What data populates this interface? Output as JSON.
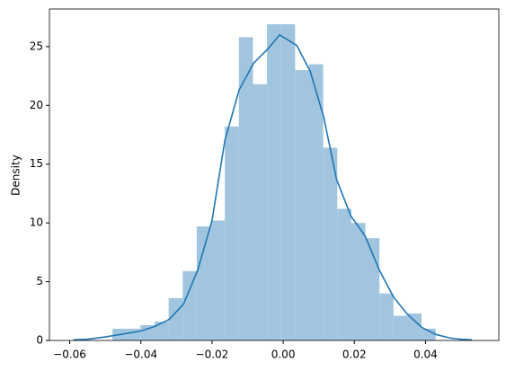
{
  "chart_data": {
    "type": "histogram",
    "ylabel": "Density",
    "bins": [
      -0.048,
      -0.04405,
      -0.0401,
      -0.03615,
      -0.0322,
      -0.02825,
      -0.0243,
      -0.02035,
      -0.0164,
      -0.01245,
      -0.0085,
      -0.00455,
      -0.0006,
      0.00335,
      0.0073,
      0.01125,
      0.0152,
      0.01915,
      0.0231,
      0.02705,
      0.031,
      0.03495,
      0.0389,
      0.04285
    ],
    "values": [
      1.0,
      1.0,
      1.3,
      1.6,
      3.6,
      5.9,
      9.7,
      10.2,
      18.2,
      25.8,
      21.8,
      26.9,
      26.9,
      23.0,
      23.5,
      16.4,
      11.2,
      10.0,
      8.7,
      4.0,
      2.1,
      2.3,
      1.0
    ],
    "color": "#a1c5df",
    "kde": {
      "color": "#1f77b4",
      "x": [
        -0.059,
        -0.055,
        -0.05,
        -0.045,
        -0.04,
        -0.036,
        -0.032,
        -0.028,
        -0.024,
        -0.02,
        -0.0164,
        -0.0124,
        -0.0083,
        -0.0043,
        -0.001,
        0.0038,
        0.0076,
        0.0114,
        0.015,
        0.019,
        0.023,
        0.027,
        0.031,
        0.035,
        0.039,
        0.043,
        0.047,
        0.05,
        0.053
      ],
      "values": [
        0.05,
        0.1,
        0.3,
        0.55,
        0.8,
        1.2,
        1.8,
        3.1,
        6.0,
        10.2,
        17.0,
        21.3,
        23.6,
        24.8,
        26.0,
        25.1,
        22.9,
        19.0,
        13.7,
        10.6,
        8.9,
        6.0,
        3.7,
        2.2,
        1.1,
        0.5,
        0.2,
        0.1,
        0.05
      ]
    },
    "xlim": [
      -0.0657,
      0.0606
    ],
    "ylim": [
      0,
      28.2
    ],
    "xticks": [
      {
        "value": -0.06,
        "label": "−0.06"
      },
      {
        "value": -0.04,
        "label": "−0.04"
      },
      {
        "value": -0.02,
        "label": "−0.02"
      },
      {
        "value": 0,
        "label": "0.00"
      },
      {
        "value": 0.02,
        "label": "0.02"
      },
      {
        "value": 0.04,
        "label": "0.04"
      }
    ],
    "yticks": [
      0,
      5,
      10,
      15,
      20,
      25
    ]
  }
}
